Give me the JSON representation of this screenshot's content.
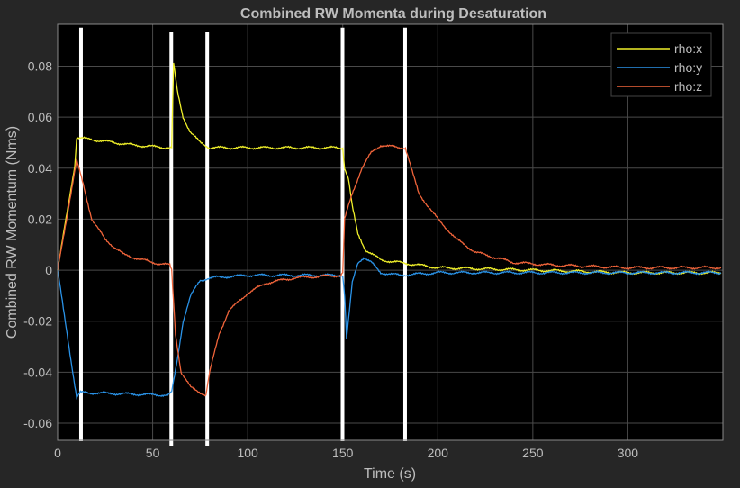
{
  "chart_data": {
    "type": "line",
    "title": "Combined RW Momenta during Desaturation",
    "xlabel": "Time (s)",
    "ylabel": "Combined RW Momentum (Nms)",
    "xlim": [
      0,
      350
    ],
    "ylim": [
      -0.0667,
      0.0964
    ],
    "xticks": [
      0,
      50,
      100,
      150,
      200,
      250,
      300
    ],
    "xtick_labels": [
      "0",
      "50",
      "100",
      "150",
      "200",
      "250",
      "300"
    ],
    "yticks": [
      -0.06,
      -0.04,
      -0.02,
      0,
      0.02,
      0.04,
      0.06,
      0.08
    ],
    "ytick_labels": [
      "-0.06",
      "-0.04",
      "-0.02",
      "0",
      "0.02",
      "0.04",
      "0.06",
      "0.08"
    ],
    "grid": true,
    "legend_position": "top-right",
    "background": "#000000",
    "figure_background": "#262626",
    "series": [
      {
        "name": "rho:x",
        "color": "#f0f02a",
        "x": [
          0,
          9,
          10,
          20,
          40,
          58,
          60,
          61,
          63,
          66,
          70,
          75,
          80,
          100,
          149,
          150,
          151,
          153,
          155,
          158,
          162,
          170,
          180,
          200,
          250,
          300,
          349
        ],
        "y": [
          0,
          0.041,
          0.052,
          0.051,
          0.049,
          0.048,
          0.048,
          0.081,
          0.07,
          0.06,
          0.054,
          0.05,
          0.048,
          0.048,
          0.048,
          0.048,
          0.04,
          0.036,
          0.025,
          0.014,
          0.008,
          0.004,
          0.003,
          0.001,
          0.0,
          -0.001,
          -0.001
        ]
      },
      {
        "name": "rho:y",
        "color": "#2a93e8",
        "x": [
          0,
          10,
          12,
          58,
          60,
          63,
          66,
          70,
          75,
          80,
          100,
          150,
          151,
          152,
          153,
          155,
          158,
          161,
          165,
          170,
          180,
          200,
          349
        ],
        "y": [
          0,
          -0.05,
          -0.048,
          -0.049,
          -0.048,
          -0.035,
          -0.02,
          -0.01,
          -0.004,
          -0.003,
          -0.002,
          -0.002,
          -0.01,
          -0.027,
          -0.02,
          -0.005,
          0.003,
          0.005,
          0.003,
          -0.001,
          -0.002,
          -0.001,
          -0.001
        ]
      },
      {
        "name": "rho:z",
        "color": "#f0643a",
        "x": [
          0,
          10,
          13,
          18,
          25,
          35,
          50,
          59,
          60,
          62,
          65,
          70,
          78,
          80,
          85,
          90,
          100,
          110,
          125,
          149,
          150,
          151,
          155,
          160,
          165,
          170,
          180,
          183,
          186,
          190,
          200,
          210,
          220,
          240,
          260,
          300,
          349
        ],
        "y": [
          0,
          0.043,
          0.035,
          0.02,
          0.012,
          0.006,
          0.003,
          0.002,
          0.0,
          -0.025,
          -0.04,
          -0.046,
          -0.049,
          -0.04,
          -0.025,
          -0.016,
          -0.009,
          -0.005,
          -0.003,
          -0.002,
          -0.001,
          0.02,
          0.03,
          0.04,
          0.046,
          0.049,
          0.048,
          0.048,
          0.04,
          0.03,
          0.02,
          0.012,
          0.007,
          0.003,
          0.002,
          0.001,
          0.001
        ]
      }
    ],
    "event_markers": {
      "color": "#ffffff",
      "x": [
        12.3,
        59.8,
        78.7,
        149.9,
        182.8
      ]
    }
  }
}
